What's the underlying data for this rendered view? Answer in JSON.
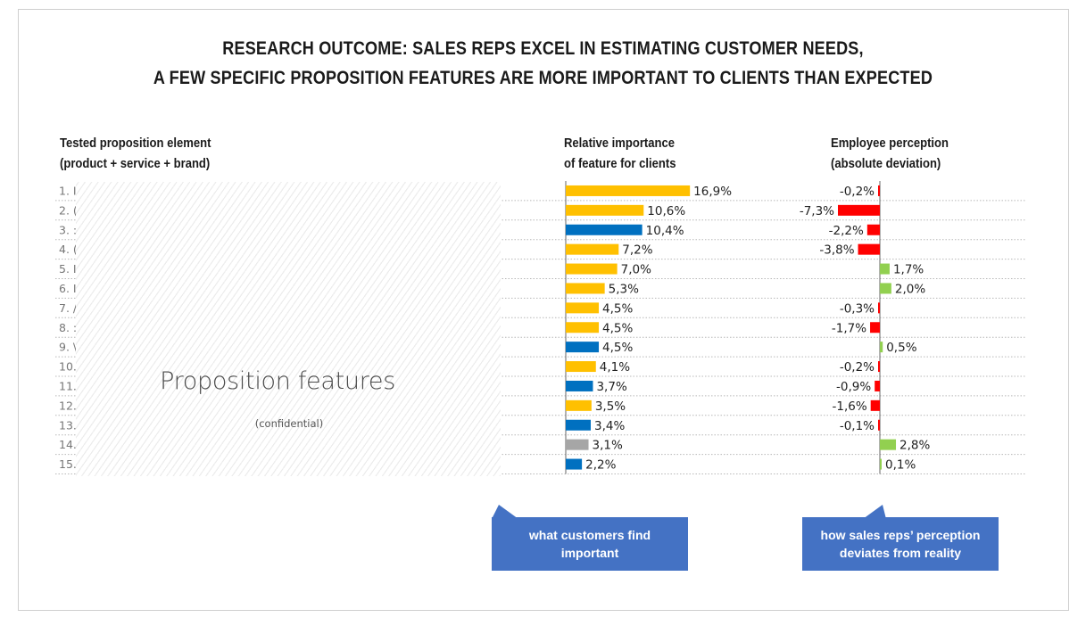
{
  "title": {
    "line1": "RESEARCH OUTCOME: SALES REPS EXCEL IN ESTIMATING CUSTOMER NEEDS,",
    "line2": "A FEW SPECIFIC PROPOSITION FEATURES ARE MORE IMPORTANT TO CLIENTS THAN EXPECTED"
  },
  "headers": {
    "features": [
      "Tested proposition element",
      "(product + service + brand)"
    ],
    "importance": [
      "Relative importance",
      "of feature for clients"
    ],
    "perception": [
      "Employee perception",
      "(absolute deviation)"
    ]
  },
  "placeholder": {
    "title": "Proposition features",
    "subtitle": "(confidential)"
  },
  "callouts": {
    "importance": [
      "what customers find",
      "important"
    ],
    "perception": [
      "how sales reps’ perception",
      "deviates from reality"
    ]
  },
  "colors": {
    "yellow": "#ffc000",
    "blue": "#0070c0",
    "gray": "#a6a6a6",
    "red": "#ff0000",
    "green": "#92d050",
    "callout": "#4472c4"
  },
  "chart_data": [
    {
      "type": "bar",
      "orientation": "horizontal",
      "categories": [
        "1. I",
        "2. (",
        "3. :",
        "4. (",
        "5. I",
        "6. I",
        "7. /",
        "8. :",
        "9. \\",
        "10.",
        "11.",
        "12.",
        "13.",
        "14.",
        "15."
      ],
      "values": [
        16.9,
        10.6,
        10.4,
        7.2,
        7.0,
        5.3,
        4.5,
        4.5,
        4.5,
        4.1,
        3.7,
        3.5,
        3.4,
        3.1,
        2.2
      ],
      "labels": [
        "16,9%",
        "10,6%",
        "10,4%",
        "7,2%",
        "7,0%",
        "5,3%",
        "4,5%",
        "4,5%",
        "4,5%",
        "4,1%",
        "3,7%",
        "3,5%",
        "3,4%",
        "3,1%",
        "2,2%"
      ],
      "bar_colors": [
        "yellow",
        "yellow",
        "blue",
        "yellow",
        "yellow",
        "yellow",
        "yellow",
        "yellow",
        "blue",
        "yellow",
        "blue",
        "yellow",
        "blue",
        "gray",
        "blue"
      ],
      "xlim": [
        0,
        17
      ]
    },
    {
      "type": "bar",
      "orientation": "horizontal",
      "values": [
        -0.2,
        -7.3,
        -2.2,
        -3.8,
        1.7,
        2.0,
        -0.3,
        -1.7,
        0.5,
        -0.2,
        -0.9,
        -1.6,
        -0.1,
        2.8,
        0.1
      ],
      "labels": [
        "-0,2%",
        "-7,3%",
        "-2,2%",
        "-3,8%",
        "1,7%",
        "2,0%",
        "-0,3%",
        "-1,7%",
        "0,5%",
        "-0,2%",
        "-0,9%",
        "-1,6%",
        "-0,1%",
        "2,8%",
        "0,1%"
      ],
      "negative_color": "red",
      "positive_color": "green",
      "xlim": [
        -7.5,
        7.5
      ]
    }
  ]
}
